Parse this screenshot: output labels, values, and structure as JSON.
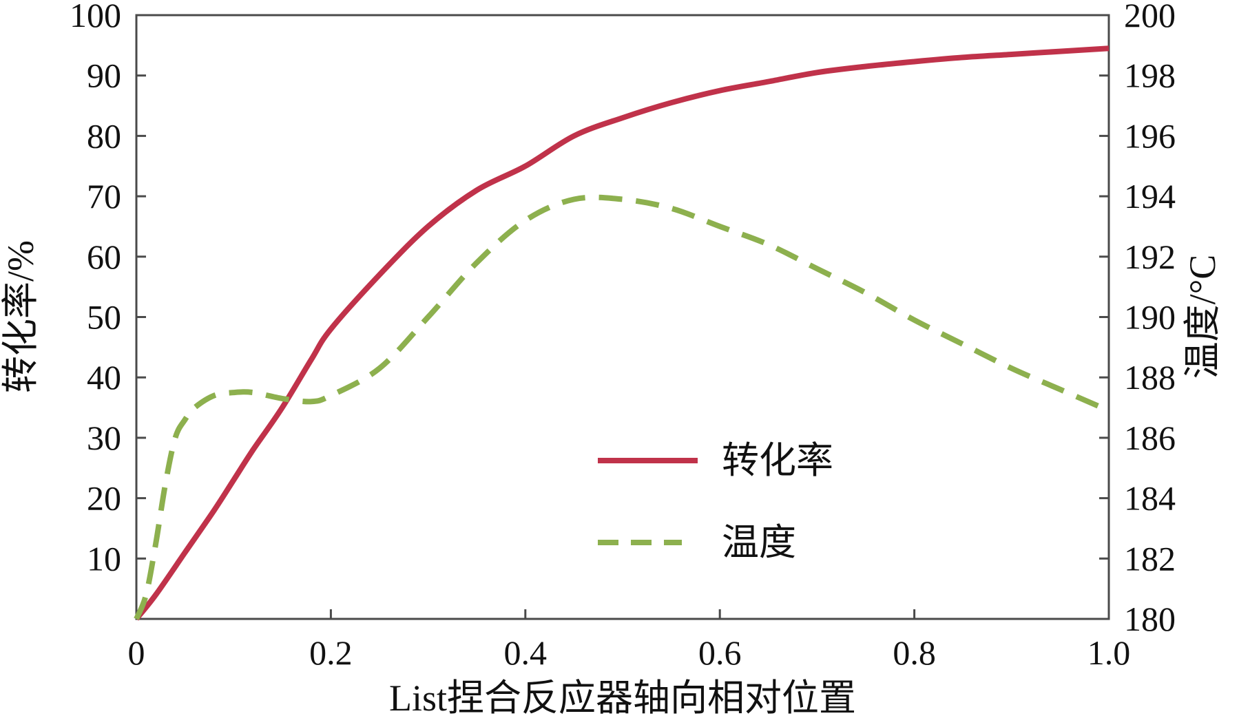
{
  "chart_data": {
    "type": "line",
    "xlabel": "List捏合反应器轴向相对位置",
    "ylabel_left": "转化率/%",
    "ylabel_right": "温度/°C",
    "xlim": [
      0,
      1.0
    ],
    "ylim_left": [
      0,
      100
    ],
    "ylim_right": [
      180,
      200
    ],
    "x_ticks": [
      {
        "value": 0,
        "label": "0"
      },
      {
        "value": 0.2,
        "label": "0.2"
      },
      {
        "value": 0.4,
        "label": "0.4"
      },
      {
        "value": 0.6,
        "label": "0.6"
      },
      {
        "value": 0.8,
        "label": "0.8"
      },
      {
        "value": 1.0,
        "label": "1.0"
      }
    ],
    "y_left_ticks": [
      {
        "value": 10,
        "label": "10"
      },
      {
        "value": 20,
        "label": "20"
      },
      {
        "value": 30,
        "label": "30"
      },
      {
        "value": 40,
        "label": "40"
      },
      {
        "value": 50,
        "label": "50"
      },
      {
        "value": 60,
        "label": "60"
      },
      {
        "value": 70,
        "label": "70"
      },
      {
        "value": 80,
        "label": "80"
      },
      {
        "value": 90,
        "label": "90"
      },
      {
        "value": 100,
        "label": "100"
      }
    ],
    "y_right_ticks": [
      {
        "value": 180,
        "label": "180"
      },
      {
        "value": 182,
        "label": "182"
      },
      {
        "value": 184,
        "label": "184"
      },
      {
        "value": 186,
        "label": "186"
      },
      {
        "value": 188,
        "label": "188"
      },
      {
        "value": 190,
        "label": "190"
      },
      {
        "value": 192,
        "label": "192"
      },
      {
        "value": 194,
        "label": "194"
      },
      {
        "value": 196,
        "label": "196"
      },
      {
        "value": 198,
        "label": "198"
      },
      {
        "value": 200,
        "label": "200"
      }
    ],
    "grid": false,
    "legend_position": "center-right",
    "series": [
      {
        "name": "转化率",
        "axis": "left",
        "style": "solid",
        "color": "#c0324a",
        "x": [
          0.0,
          0.02,
          0.05,
          0.08,
          0.1,
          0.12,
          0.15,
          0.18,
          0.2,
          0.25,
          0.3,
          0.35,
          0.4,
          0.45,
          0.5,
          0.55,
          0.6,
          0.65,
          0.7,
          0.75,
          0.8,
          0.85,
          0.9,
          0.95,
          1.0
        ],
        "y": [
          0,
          4,
          11,
          18,
          23,
          28,
          35,
          43,
          48,
          57,
          65,
          71,
          75,
          80,
          83,
          85.5,
          87.5,
          89,
          90.5,
          91.5,
          92.3,
          93,
          93.5,
          94,
          94.5
        ]
      },
      {
        "name": "温度",
        "axis": "right",
        "style": "dashed",
        "color": "#8db04e",
        "x": [
          0.0,
          0.01,
          0.02,
          0.03,
          0.04,
          0.05,
          0.06,
          0.08,
          0.1,
          0.12,
          0.15,
          0.18,
          0.2,
          0.25,
          0.3,
          0.35,
          0.4,
          0.45,
          0.5,
          0.55,
          0.6,
          0.65,
          0.7,
          0.75,
          0.8,
          0.85,
          0.9,
          0.95,
          1.0
        ],
        "y": [
          180,
          180.8,
          182.5,
          184.5,
          186,
          186.6,
          187,
          187.4,
          187.5,
          187.5,
          187.3,
          187.2,
          187.4,
          188.3,
          190,
          191.8,
          193.2,
          193.9,
          193.9,
          193.6,
          193,
          192.4,
          191.6,
          190.8,
          189.9,
          189.1,
          188.3,
          187.6,
          186.9
        ]
      }
    ]
  }
}
